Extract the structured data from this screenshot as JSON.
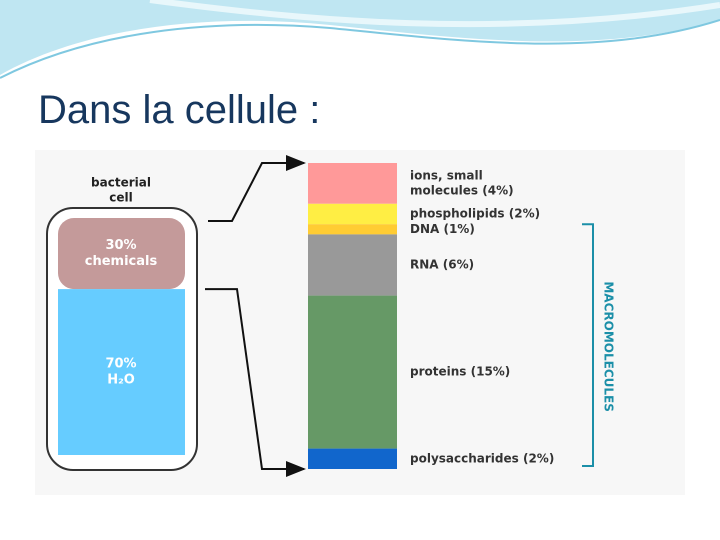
{
  "title": "Dans la cellule :",
  "cell": {
    "caption_lines": [
      "bacterial",
      "cell"
    ],
    "parts": [
      {
        "lines": [
          "30%",
          "chemicals"
        ],
        "percent": 30,
        "color": "#c49a9a"
      },
      {
        "lines": [
          "70%",
          "H₂O"
        ],
        "percent": 70,
        "color": "#66ccff"
      }
    ]
  },
  "bar": {
    "segments": [
      {
        "lines": [
          "ions, small",
          "molecules (4%)"
        ],
        "percent": 4,
        "color": "#ff9999"
      },
      {
        "lines": [
          "phospholipids (2%)"
        ],
        "percent": 2,
        "color": "#ffee44"
      },
      {
        "lines": [
          "DNA (1%)"
        ],
        "percent": 1,
        "color": "#ffcc33"
      },
      {
        "lines": [
          "RNA (6%)"
        ],
        "percent": 6,
        "color": "#999999"
      },
      {
        "lines": [
          "proteins (15%)"
        ],
        "percent": 15,
        "color": "#669966"
      },
      {
        "lines": [
          "polysaccharides (2%)"
        ],
        "percent": 2,
        "color": "#1166cc"
      }
    ],
    "group_label": "MACROMOLECULES"
  }
}
